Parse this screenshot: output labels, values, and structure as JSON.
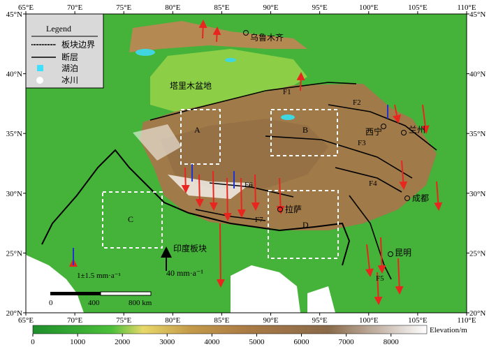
{
  "map": {
    "xlim": [
      65,
      110
    ],
    "ylim": [
      20,
      45
    ],
    "xticks": [
      {
        "value": 65,
        "label": "65°E"
      },
      {
        "value": 70,
        "label": "70°E"
      },
      {
        "value": 75,
        "label": "75°E"
      },
      {
        "value": 80,
        "label": "80°E"
      },
      {
        "value": 85,
        "label": "85°E"
      },
      {
        "value": 90,
        "label": "90°E"
      },
      {
        "value": 95,
        "label": "95°E"
      },
      {
        "value": 100,
        "label": "100°E"
      },
      {
        "value": 105,
        "label": "105°E"
      },
      {
        "value": 110,
        "label": "110°E"
      }
    ],
    "yticks": [
      {
        "value": 20,
        "label": "20°N"
      },
      {
        "value": 25,
        "label": "25°N"
      },
      {
        "value": 30,
        "label": "30°N"
      },
      {
        "value": 35,
        "label": "35°N"
      },
      {
        "value": 40,
        "label": "40°N"
      },
      {
        "value": 45,
        "label": "45°N"
      }
    ],
    "legend": {
      "title": "Legend",
      "items": [
        "板块边界",
        "断层",
        "湖泊",
        "冰川"
      ]
    },
    "places": {
      "basin": "塔里木盆地",
      "urumqi": "乌鲁木齐",
      "xining": "西宁",
      "lanzhou": "兰州",
      "chengdu": "成都",
      "lhasa": "拉萨",
      "kunming": "昆明",
      "plate": "印度板块"
    },
    "faults": [
      "F1",
      "F2",
      "F3",
      "F4",
      "F5",
      "F6",
      "F7"
    ],
    "boxes": [
      "A",
      "B",
      "C",
      "D"
    ],
    "velocity_scale": "1±1.5 mm·a⁻¹",
    "plate_rate": "40 mm·a⁻¹",
    "scalebar": [
      "0",
      "400",
      "800 km"
    ]
  },
  "colorbar": {
    "lim": [
      0,
      8800
    ],
    "ticks": [
      0,
      1000,
      2000,
      3000,
      4000,
      5000,
      6000,
      7000,
      8000
    ],
    "label": "Elevation/m"
  }
}
